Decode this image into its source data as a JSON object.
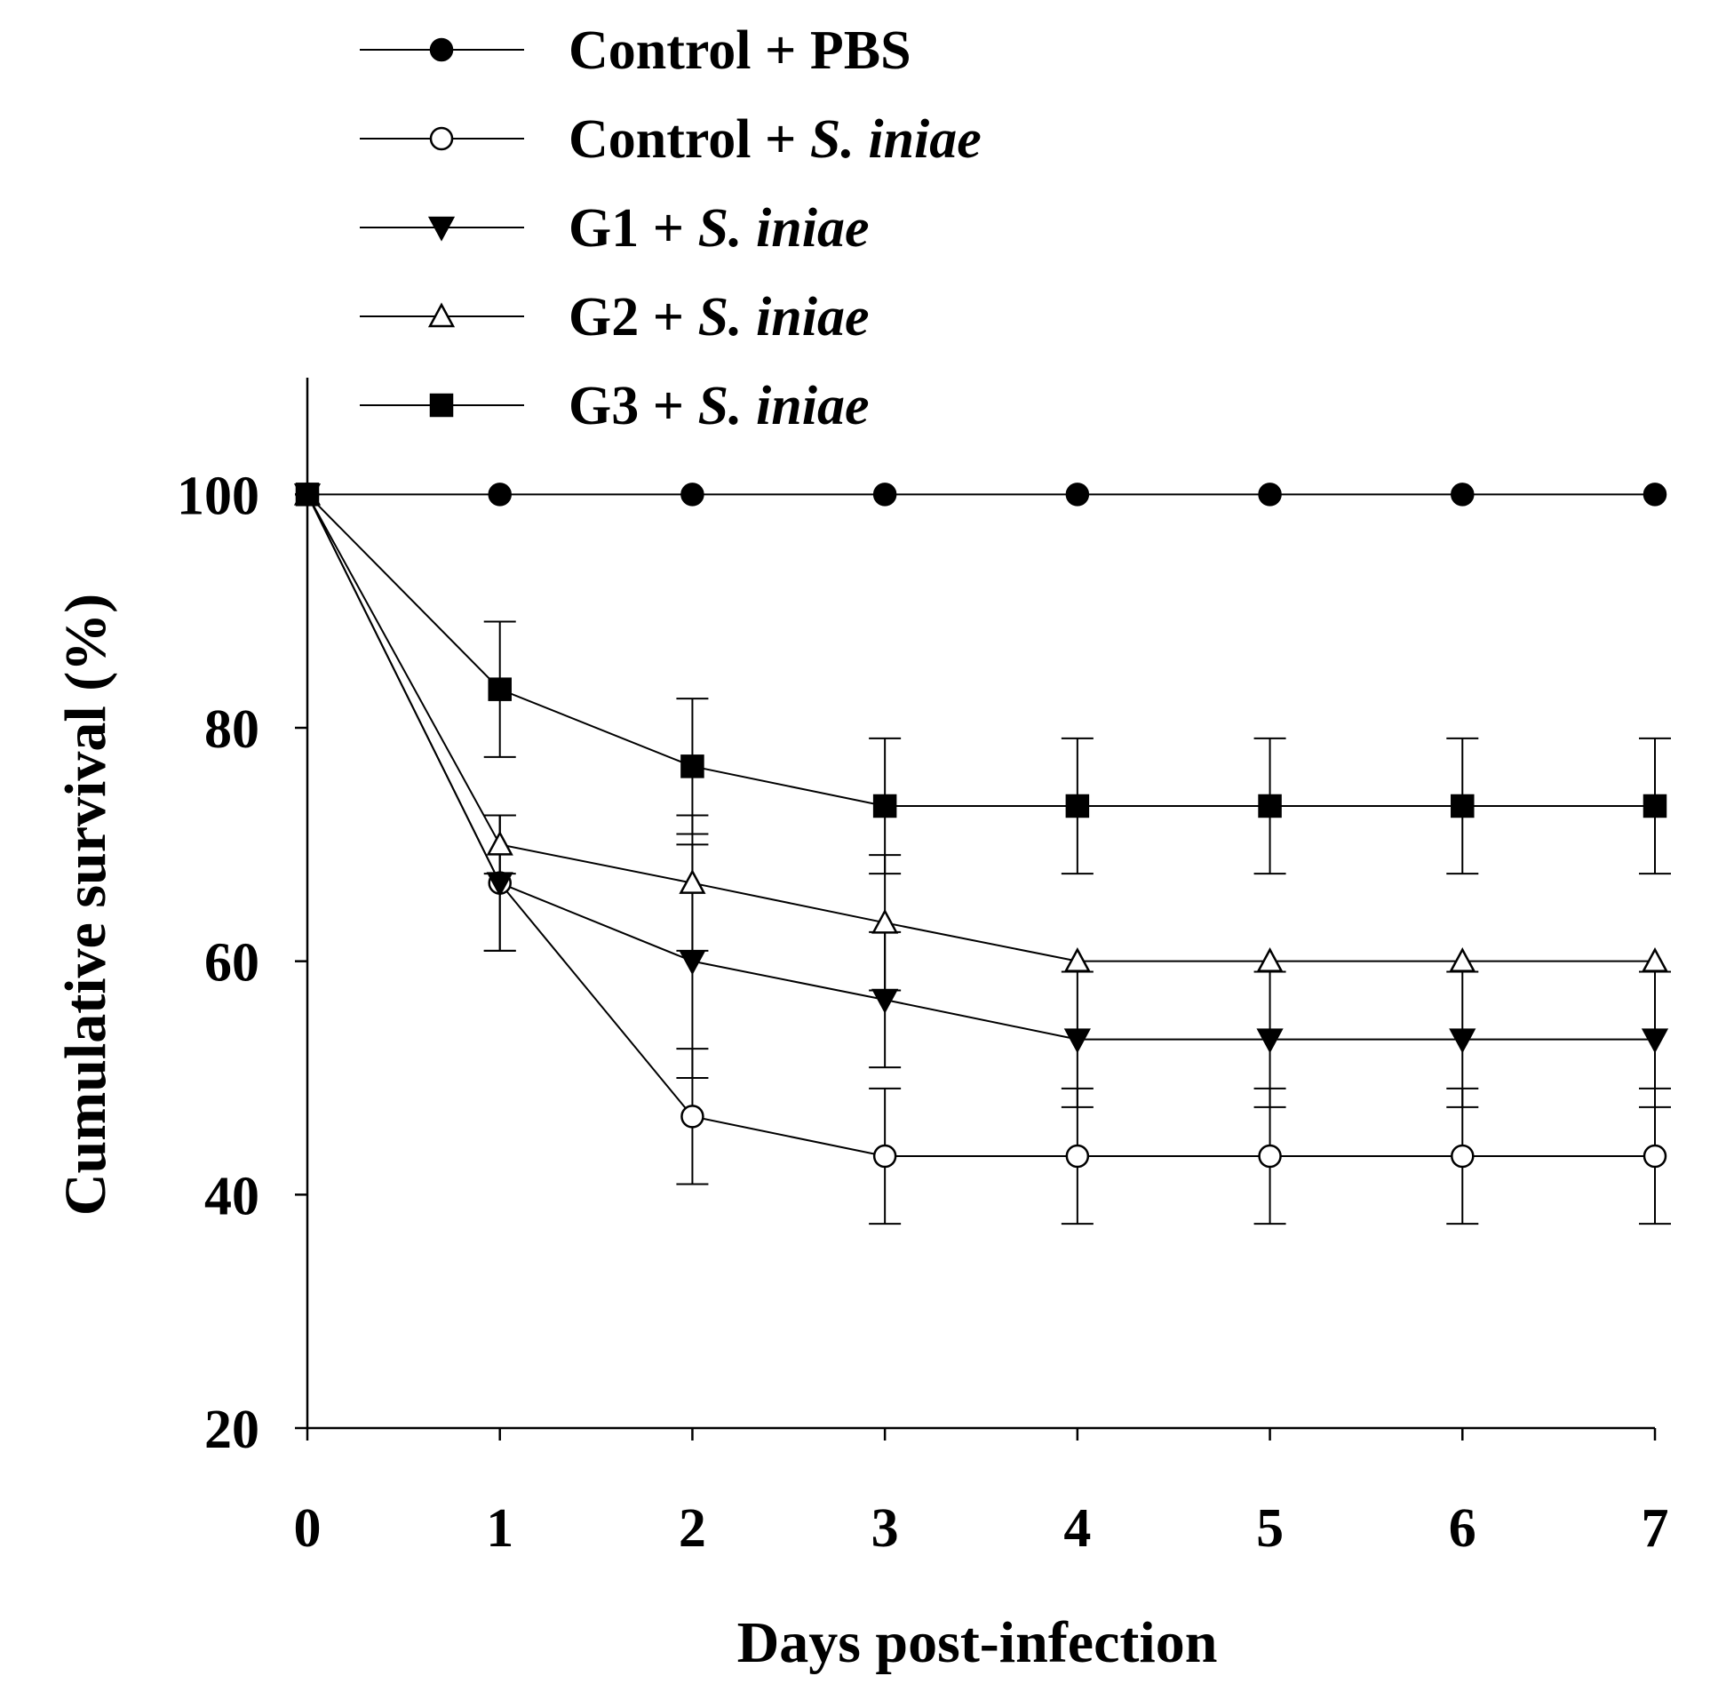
{
  "chart_data": {
    "type": "line",
    "title": "",
    "xlabel": "Days post-infection",
    "ylabel": "Cumulative survival (%)",
    "xlim": [
      0,
      7
    ],
    "ylim": [
      20,
      110
    ],
    "x_ticks": [
      "0",
      "1",
      "2",
      "3",
      "4",
      "5",
      "6",
      "7"
    ],
    "y_ticks": [
      "20",
      "40",
      "60",
      "80",
      "100"
    ],
    "grid": false,
    "legend_position": "top-left",
    "x": [
      0,
      1,
      2,
      3,
      4,
      5,
      6,
      7
    ],
    "series": [
      {
        "name": "Control + PBS",
        "legend_prefix": "Control + PBS",
        "legend_italic": "",
        "marker": "filled-circle",
        "values": [
          100,
          100,
          100,
          100,
          100,
          100,
          100,
          100
        ],
        "errors": [
          0,
          0,
          0,
          0,
          0,
          0,
          0,
          0
        ]
      },
      {
        "name": "Control + S. iniae",
        "legend_prefix": "Control + ",
        "legend_italic": "S. iniae",
        "marker": "open-circle",
        "values": [
          100,
          66.7,
          46.7,
          43.3,
          43.3,
          43.3,
          43.3,
          43.3
        ],
        "errors": [
          0,
          5.8,
          5.8,
          5.8,
          5.8,
          5.8,
          5.8,
          5.8
        ]
      },
      {
        "name": "G1 + S. iniae",
        "legend_prefix": "G1 + ",
        "legend_italic": "S. iniae",
        "marker": "filled-triangle-down",
        "values": [
          100,
          66.7,
          60,
          56.7,
          53.3,
          53.3,
          53.3,
          53.3
        ],
        "errors": [
          0,
          5.8,
          10,
          5.8,
          5.8,
          5.8,
          5.8,
          5.8
        ]
      },
      {
        "name": "G2 + S. iniae",
        "legend_prefix": "G2 + ",
        "legend_italic": "S. iniae",
        "marker": "open-triangle-up",
        "values": [
          100,
          70,
          66.7,
          63.3,
          60,
          60,
          60,
          60
        ],
        "errors": [
          0,
          2.5,
          5.8,
          5.8,
          0,
          0,
          0,
          0
        ]
      },
      {
        "name": "G3 + S. iniae",
        "legend_prefix": "G3 + ",
        "legend_italic": "S. iniae",
        "marker": "filled-square",
        "values": [
          100,
          83.3,
          76.7,
          73.3,
          73.3,
          73.3,
          73.3,
          73.3
        ],
        "errors": [
          0,
          5.8,
          5.8,
          5.8,
          5.8,
          5.8,
          5.8,
          5.8
        ]
      }
    ]
  }
}
